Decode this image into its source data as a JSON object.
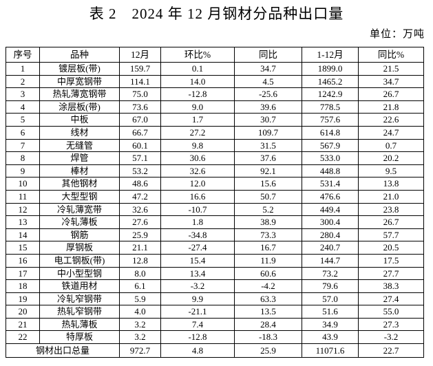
{
  "page": {
    "title": "表 2　2024 年 12 月钢材分品种出口量",
    "unit_label": "单位：万吨"
  },
  "table": {
    "columns": [
      "序号",
      "品种",
      "12月",
      "环比%",
      "同比",
      "1-12月",
      "同比%"
    ],
    "rows": [
      [
        "1",
        "镀层板(带)",
        "159.7",
        "0.1",
        "34.7",
        "1899.0",
        "21.5"
      ],
      [
        "2",
        "中厚宽钢带",
        "114.1",
        "14.0",
        "4.5",
        "1465.2",
        "34.7"
      ],
      [
        "3",
        "热轧薄宽钢带",
        "75.0",
        "-12.8",
        "-25.6",
        "1242.9",
        "26.7"
      ],
      [
        "4",
        "涂层板(带)",
        "73.6",
        "9.0",
        "39.6",
        "778.5",
        "21.8"
      ],
      [
        "5",
        "中板",
        "67.0",
        "1.7",
        "30.7",
        "757.6",
        "22.6"
      ],
      [
        "6",
        "线材",
        "66.7",
        "27.2",
        "109.7",
        "614.8",
        "24.7"
      ],
      [
        "7",
        "无缝管",
        "60.1",
        "9.8",
        "31.5",
        "567.9",
        "0.7"
      ],
      [
        "8",
        "焊管",
        "57.1",
        "30.6",
        "37.6",
        "533.0",
        "20.2"
      ],
      [
        "9",
        "棒材",
        "53.2",
        "32.6",
        "92.1",
        "448.8",
        "9.5"
      ],
      [
        "10",
        "其他钢材",
        "48.6",
        "12.0",
        "15.6",
        "531.4",
        "13.8"
      ],
      [
        "11",
        "大型型钢",
        "47.2",
        "16.6",
        "50.7",
        "476.6",
        "21.0"
      ],
      [
        "12",
        "冷轧薄宽带",
        "32.6",
        "-10.7",
        "5.2",
        "449.4",
        "23.8"
      ],
      [
        "13",
        "冷轧薄板",
        "27.6",
        "1.8",
        "38.9",
        "300.4",
        "26.7"
      ],
      [
        "14",
        "钢筋",
        "25.9",
        "-34.8",
        "73.3",
        "280.4",
        "57.7"
      ],
      [
        "15",
        "厚钢板",
        "21.1",
        "-27.4",
        "16.7",
        "240.7",
        "20.5"
      ],
      [
        "16",
        "电工钢板(带)",
        "12.8",
        "15.4",
        "11.9",
        "144.7",
        "17.5"
      ],
      [
        "17",
        "中小型型钢",
        "8.0",
        "13.4",
        "60.6",
        "73.2",
        "27.7"
      ],
      [
        "18",
        "铁道用材",
        "6.1",
        "-3.2",
        "-4.2",
        "79.6",
        "38.3"
      ],
      [
        "19",
        "冷轧窄钢带",
        "5.9",
        "9.9",
        "63.3",
        "57.0",
        "27.4"
      ],
      [
        "20",
        "热轧窄钢带",
        "4.0",
        "-21.1",
        "13.5",
        "51.6",
        "55.0"
      ],
      [
        "21",
        "热轧薄板",
        "3.2",
        "7.4",
        "28.4",
        "34.9",
        "27.3"
      ],
      [
        "22",
        "特厚板",
        "3.2",
        "-12.8",
        "-18.3",
        "43.9",
        "-3.2"
      ]
    ],
    "total": {
      "label": "钢材出口总量",
      "values": [
        "972.7",
        "4.8",
        "25.9",
        "11071.6",
        "22.7"
      ]
    }
  }
}
